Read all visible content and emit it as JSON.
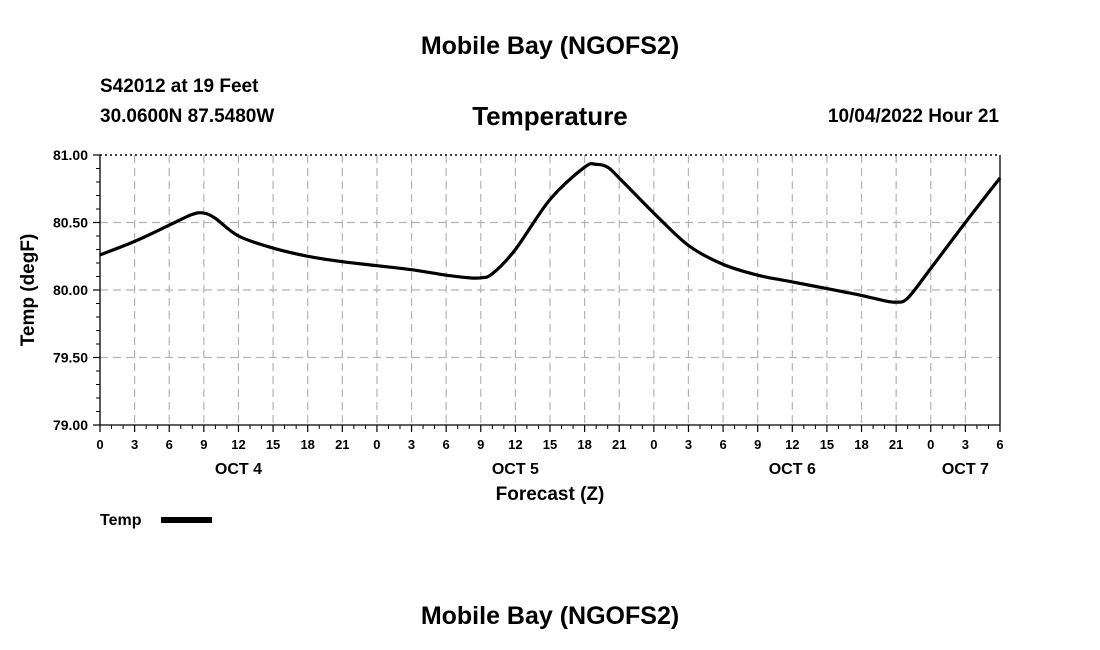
{
  "header": {
    "title_top": "Mobile Bay (NGOFS2)",
    "station": "S42012 at 19 Feet",
    "location": "30.0600N  87.5480W",
    "chart_title": "Temperature",
    "datetime": "10/04/2022 Hour 21"
  },
  "footer": {
    "title_bottom": "Mobile Bay (NGOFS2)"
  },
  "chart_data": {
    "type": "line",
    "title": "Temperature",
    "xlabel": "Forecast (Z)",
    "ylabel": "Temp (degF)",
    "ylim": [
      79.0,
      81.0
    ],
    "xlim": [
      0,
      78
    ],
    "yticks": [
      "79.00",
      "79.50",
      "80.00",
      "80.50",
      "81.00"
    ],
    "ytick_values": [
      79.0,
      79.5,
      80.0,
      80.5,
      81.0
    ],
    "xticks": [
      "0",
      "3",
      "6",
      "9",
      "12",
      "15",
      "18",
      "21",
      "0",
      "3",
      "6",
      "9",
      "12",
      "15",
      "18",
      "21",
      "0",
      "3",
      "6",
      "9",
      "12",
      "15",
      "18",
      "21",
      "0",
      "3",
      "6"
    ],
    "day_labels": [
      {
        "label": "OCT 4",
        "at_hour": 12
      },
      {
        "label": "OCT 5",
        "at_hour": 36
      },
      {
        "label": "OCT 6",
        "at_hour": 60
      },
      {
        "label": "OCT 7",
        "at_hour": 75
      }
    ],
    "grid": true,
    "legend": {
      "label": "Temp",
      "placement": "bottom-left"
    },
    "series": [
      {
        "name": "Temp",
        "color": "#000000",
        "x": [
          0,
          3,
          6,
          8,
          9,
          10,
          12,
          15,
          18,
          21,
          24,
          27,
          30,
          32,
          33,
          34,
          36,
          39,
          42,
          43,
          44,
          45,
          48,
          51,
          54,
          57,
          60,
          63,
          66,
          68,
          69,
          70,
          72,
          75,
          78
        ],
        "values": [
          80.26,
          80.36,
          80.48,
          80.56,
          80.57,
          80.53,
          80.4,
          80.31,
          80.25,
          80.21,
          80.18,
          80.15,
          80.11,
          80.09,
          80.09,
          80.12,
          80.3,
          80.67,
          80.91,
          80.93,
          80.91,
          80.83,
          80.57,
          80.33,
          80.19,
          80.11,
          80.06,
          80.01,
          79.96,
          79.92,
          79.91,
          79.94,
          80.16,
          80.5,
          80.83
        ]
      }
    ]
  }
}
